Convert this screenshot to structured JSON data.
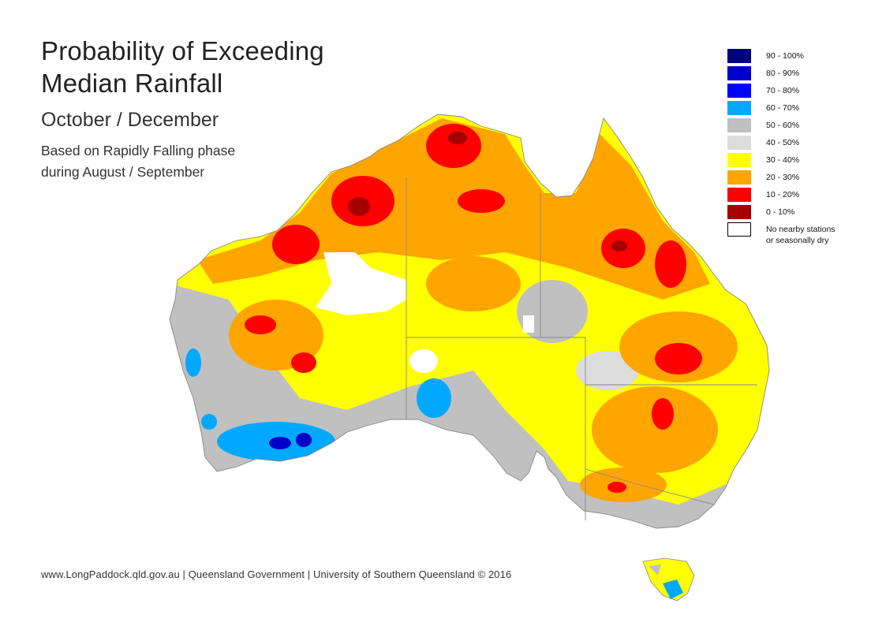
{
  "title": {
    "line1": "Probability of Exceeding",
    "line2": "Median Rainfall"
  },
  "subtitle": "October / December",
  "note": {
    "line1": "Based on Rapidly Falling phase",
    "line2": "during August / September"
  },
  "legend": [
    {
      "label": "90 - 100%",
      "color": "#00007f"
    },
    {
      "label": "80 - 90%",
      "color": "#0000c8"
    },
    {
      "label": "70 - 80%",
      "color": "#0000ff"
    },
    {
      "label": "60 - 70%",
      "color": "#00a9ff"
    },
    {
      "label": "50 - 60%",
      "color": "#c0c0c0"
    },
    {
      "label": "40 - 50%",
      "color": "#dcdcdc"
    },
    {
      "label": "30 - 40%",
      "color": "#ffff00"
    },
    {
      "label": "20 - 30%",
      "color": "#ffa500"
    },
    {
      "label": "10 - 20%",
      "color": "#ff0000"
    },
    {
      "label": "0 - 10%",
      "color": "#a50000"
    },
    {
      "label": "No nearby stations",
      "label2": "or seasonally dry",
      "color": "#ffffff"
    }
  ],
  "footer": "www.LongPaddock.qld.gov.au | Queensland Government | University of Southern Queensland © 2016"
}
